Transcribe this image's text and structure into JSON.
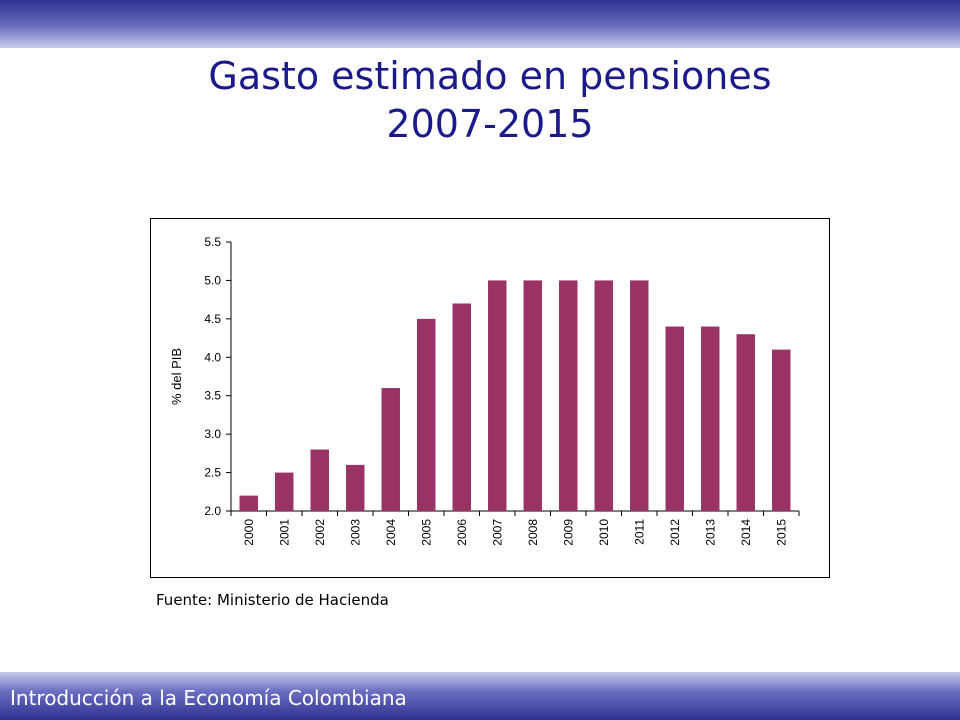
{
  "slide": {
    "title_line1": "Gasto estimado en pensiones",
    "title_line2": "2007-2015",
    "source": "Fuente: Ministerio de Hacienda",
    "footer": "Introducción a la Economía Colombiana"
  },
  "colors": {
    "bar": "#993366",
    "title": "#1a1a8c",
    "band": "#2e3192"
  },
  "chart_data": {
    "type": "bar",
    "title": "",
    "xlabel": "",
    "ylabel": "% del PIB",
    "ylim": [
      2.0,
      5.5
    ],
    "yticks": [
      "2.0",
      "2.5",
      "3.0",
      "3.5",
      "4.0",
      "4.5",
      "5.0",
      "5.5"
    ],
    "grid": false,
    "categories": [
      "2000",
      "2001",
      "2002",
      "2003",
      "2004",
      "2005",
      "2006",
      "2007",
      "2008",
      "2009",
      "2010",
      "2011",
      "2012",
      "2013",
      "2014",
      "2015"
    ],
    "values": [
      2.2,
      2.5,
      2.8,
      2.6,
      3.6,
      4.5,
      4.7,
      5.0,
      5.0,
      5.0,
      5.0,
      5.0,
      4.4,
      4.4,
      4.3,
      4.1
    ]
  }
}
